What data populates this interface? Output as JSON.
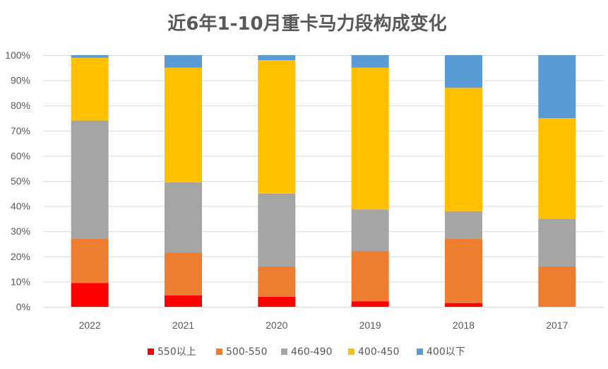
{
  "chart_data": {
    "type": "bar",
    "stacked": true,
    "title": "近6年1-10月重卡马力段构成变化",
    "categories": [
      "2022",
      "2021",
      "2020",
      "2019",
      "2018",
      "2017"
    ],
    "yticks": [
      "0%",
      "10%",
      "20%",
      "30%",
      "40%",
      "50%",
      "60%",
      "70%",
      "80%",
      "90%",
      "100%"
    ],
    "ylim": [
      0,
      100
    ],
    "legend_position": "bottom",
    "series": [
      {
        "name": "550以上",
        "color": "#ff0000",
        "values": [
          9.5,
          4.5,
          4.0,
          2.2,
          1.5,
          0.0
        ]
      },
      {
        "name": "500-550",
        "color": "#ed7d31",
        "values": [
          17.5,
          17.0,
          12.0,
          20.0,
          25.5,
          16.0
        ]
      },
      {
        "name": "460-490",
        "color": "#a5a5a5",
        "values": [
          47.0,
          28.0,
          29.0,
          16.5,
          11.0,
          19.0
        ]
      },
      {
        "name": "400-450",
        "color": "#ffc000",
        "values": [
          25.0,
          45.5,
          53.0,
          56.3,
          49.0,
          40.0
        ]
      },
      {
        "name": "400以下",
        "color": "#5b9bd5",
        "values": [
          1.0,
          5.0,
          2.0,
          5.0,
          13.0,
          25.0
        ]
      }
    ]
  }
}
